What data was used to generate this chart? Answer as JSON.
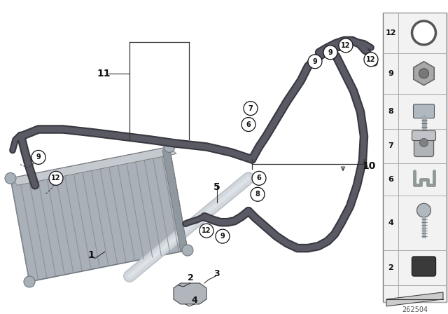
{
  "bg_color": "#ffffff",
  "part_number": "262504",
  "hose_dark": "#4a4a52",
  "hose_dark2": "#6a6a72",
  "hose_light": "#b8bec6",
  "hose_light2": "#d0d5da",
  "cooler_body": "#9aa0a8",
  "cooler_fin": "#b0b6be",
  "cooler_fin2": "#c8cdd2",
  "cooler_edge": "#707880",
  "tube_color": "#c0c8d0",
  "sidebar_bg": "#f0f0f0",
  "sidebar_border": "#888888"
}
